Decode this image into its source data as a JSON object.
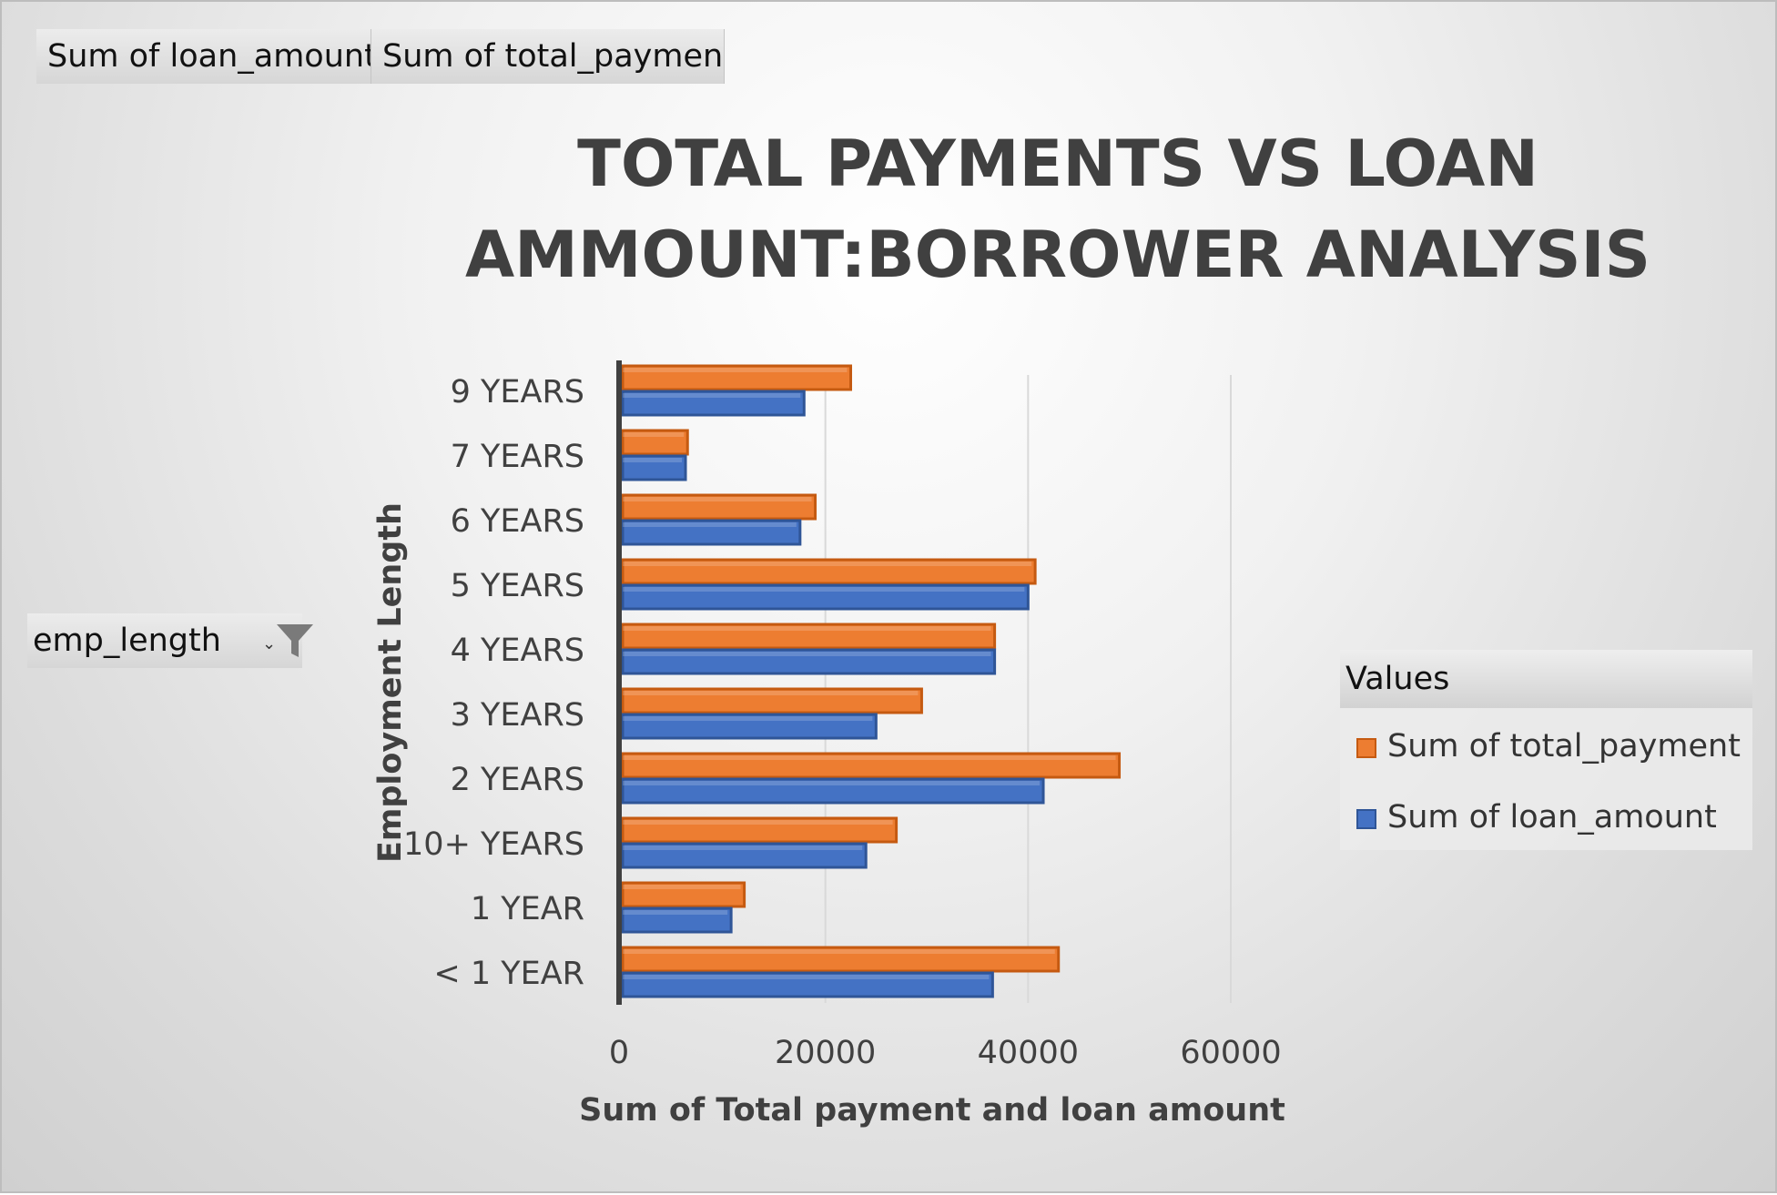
{
  "field_buttons": {
    "loan_amount": "Sum of loan_amount",
    "total_payment": "Sum of total_payment"
  },
  "filter": {
    "label": "emp_length",
    "icon": "filter-icon"
  },
  "colors": {
    "total_payment": "#ED7D31",
    "total_payment_border": "#C55A11",
    "loan_amount": "#4472C4",
    "loan_amount_border": "#2F5597",
    "gridline": "#d9d9d9",
    "axis": "#404040"
  },
  "chart_data": {
    "type": "bar",
    "orientation": "horizontal",
    "title": "TOTAL PAYMENTS VS LOAN AMMOUNT:BORROWER ANALYSIS",
    "xlabel": "Sum of Total payment and loan amount",
    "ylabel": "Employment Length",
    "categories": [
      "< 1 YEAR",
      "1 YEAR",
      "10+ YEARS",
      "2 YEARS",
      "3 YEARS",
      "4 YEARS",
      "5 YEARS",
      "6 YEARS",
      "7 YEARS",
      "9 YEARS"
    ],
    "series": [
      {
        "name": "Sum of total_payment",
        "values": [
          43000,
          12000,
          27000,
          49000,
          29500,
          36700,
          40700,
          19000,
          6400,
          22500
        ]
      },
      {
        "name": "Sum of loan_amount",
        "values": [
          36500,
          10700,
          24000,
          41500,
          25000,
          36700,
          40000,
          17500,
          6200,
          17900
        ]
      }
    ],
    "xlim": [
      0,
      60000
    ],
    "xticks": [
      "0",
      "20000",
      "40000",
      "60000"
    ],
    "grid": true,
    "legend": {
      "title": "Values",
      "position": "right",
      "entries": [
        "Sum of total_payment",
        "Sum of loan_amount"
      ]
    }
  }
}
